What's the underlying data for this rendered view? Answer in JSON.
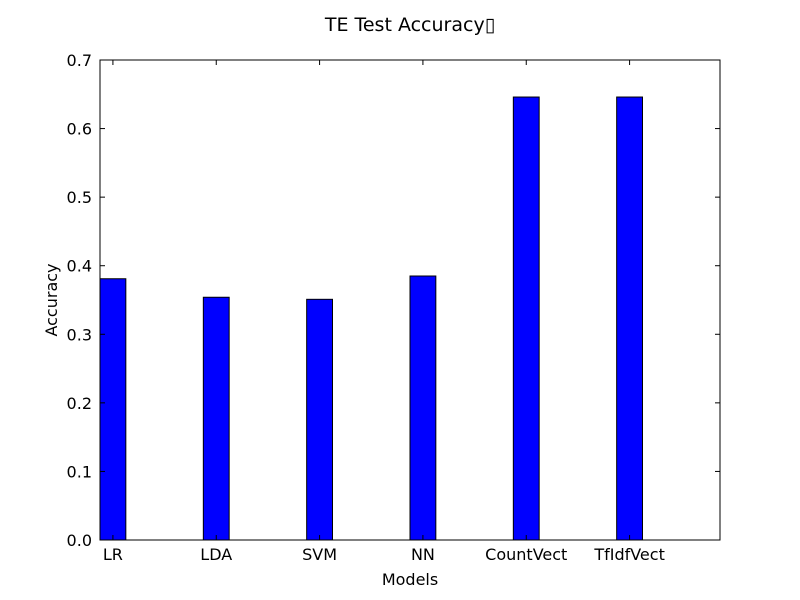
{
  "chart_data": {
    "type": "bar",
    "title": "TE Test Accuracy▯",
    "xlabel": "Models",
    "ylabel": "Accuracy",
    "categories": [
      "LR",
      "LDA",
      "SVM",
      "NN",
      "CountVect",
      "TfIdfVect"
    ],
    "values": [
      0.381,
      0.354,
      0.351,
      0.385,
      0.646,
      0.646
    ],
    "ylim": [
      0,
      0.7
    ],
    "yticks": [
      "0.0",
      "0.1",
      "0.2",
      "0.3",
      "0.4",
      "0.5",
      "0.6",
      "0.7"
    ],
    "grid": false,
    "legend": "none",
    "colors": {
      "bar": "#0000ff",
      "bar_edge": "#000000",
      "axes": "#000000",
      "background": "#ffffff"
    }
  }
}
